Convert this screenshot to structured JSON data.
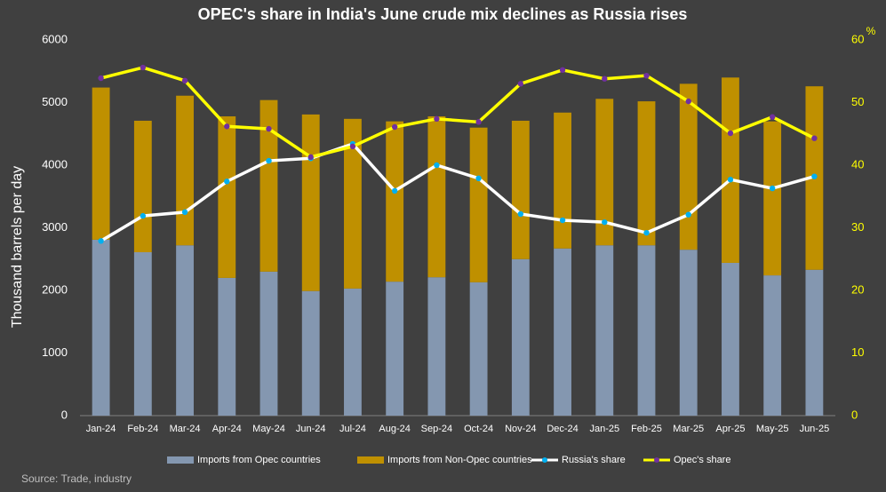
{
  "chart_data": {
    "type": "bar",
    "title": "OPEC's share in India's June crude mix declines as Russia rises",
    "y_label": "Thousand barrels per day",
    "y2_label": "%",
    "source": "Source: Trade, industry",
    "categories": [
      "Jan-24",
      "Feb-24",
      "Mar-24",
      "Apr-24",
      "May-24",
      "Jun-24",
      "Jul-24",
      "Aug-24",
      "Sep-24",
      "Oct-24",
      "Nov-24",
      "Dec-24",
      "Jan-25",
      "Feb-25",
      "Mar-25",
      "Apr-25",
      "May-25",
      "Jun-25"
    ],
    "ylim": [
      0,
      6000
    ],
    "yticks": [
      0,
      1000,
      2000,
      3000,
      4000,
      5000,
      6000
    ],
    "y2lim": [
      0,
      60
    ],
    "y2ticks": [
      0,
      10,
      20,
      30,
      40,
      50,
      60
    ],
    "stacked": true,
    "series": [
      {
        "name": "Imports from Opec countries",
        "type": "bar",
        "color": "#8497b0",
        "values": [
          2810,
          2610,
          2720,
          2200,
          2300,
          1990,
          2030,
          2140,
          2210,
          2130,
          2500,
          2670,
          2720,
          2720,
          2650,
          2440,
          2240,
          2330
        ]
      },
      {
        "name": "Imports from Non-Opec countries",
        "type": "bar",
        "color": "#bf9000",
        "values": [
          2430,
          2100,
          2390,
          2580,
          2740,
          2820,
          2710,
          2560,
          2570,
          2470,
          2210,
          2170,
          2340,
          2300,
          2650,
          2960,
          2460,
          2930
        ]
      },
      {
        "name": "Russia's share",
        "type": "line",
        "axis": "y2",
        "color": "#ffffff",
        "marker_color": "#00b0f0",
        "values": [
          27.9,
          31.9,
          32.5,
          37.4,
          40.7,
          41.1,
          43.4,
          35.9,
          40.0,
          37.9,
          32.2,
          31.2,
          30.9,
          29.2,
          32.1,
          37.7,
          36.3,
          38.2
        ]
      },
      {
        "name": "Opec's share",
        "type": "line",
        "axis": "y2",
        "color": "#ffff00",
        "marker_color": "#7030a0",
        "values": [
          53.9,
          55.6,
          53.5,
          46.2,
          45.8,
          41.3,
          43.0,
          46.1,
          47.4,
          46.9,
          53.0,
          55.2,
          53.8,
          54.3,
          50.2,
          45.1,
          47.7,
          44.3
        ]
      }
    ]
  }
}
